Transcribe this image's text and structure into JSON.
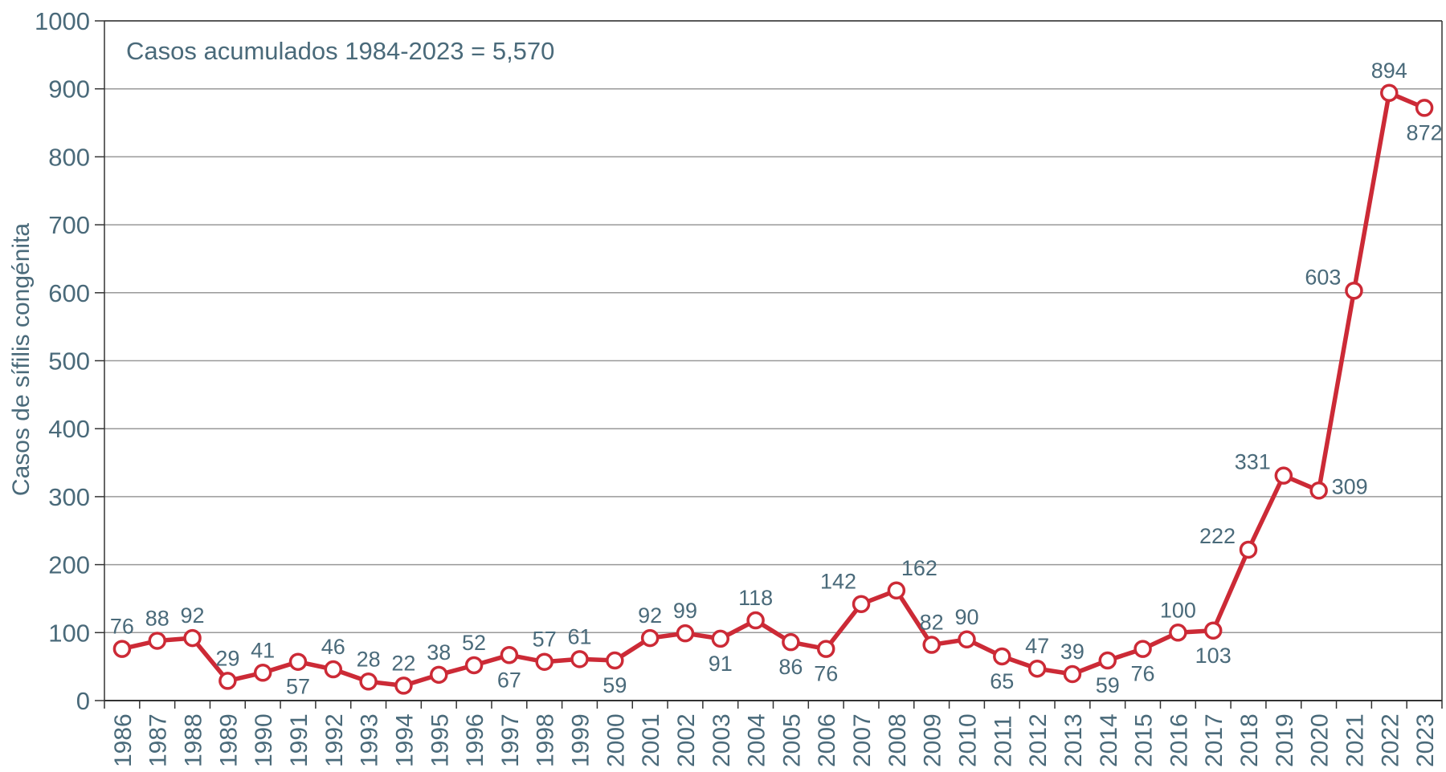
{
  "chart_data": {
    "type": "line",
    "title": "",
    "annotation": "Casos acumulados 1984-2023 = 5,570",
    "xlabel": "",
    "ylabel": "Casos de sífilis congénita",
    "ylim": [
      0,
      1000
    ],
    "yticks": [
      0,
      100,
      200,
      300,
      400,
      500,
      600,
      700,
      800,
      900,
      1000
    ],
    "grid": true,
    "categories": [
      "1986",
      "1987",
      "1988",
      "1989",
      "1990",
      "1991",
      "1992",
      "1993",
      "1994",
      "1995",
      "1996",
      "1997",
      "1998",
      "1999",
      "2000",
      "2001",
      "2002",
      "2003",
      "2004",
      "2005",
      "2006",
      "2007",
      "2008",
      "2009",
      "2010",
      "2011",
      "2012",
      "2013",
      "2014",
      "2015",
      "2016",
      "2017",
      "2018",
      "2019",
      "2020",
      "2021",
      "2022",
      "2023"
    ],
    "series": [
      {
        "name": "Casos de sífilis congénita",
        "values": [
          76,
          88,
          92,
          29,
          41,
          57,
          46,
          28,
          22,
          38,
          52,
          67,
          57,
          61,
          59,
          92,
          99,
          91,
          118,
          86,
          76,
          142,
          162,
          82,
          90,
          65,
          47,
          39,
          59,
          76,
          100,
          103,
          222,
          331,
          309,
          603,
          894,
          872
        ],
        "label_positions": [
          "above",
          "above",
          "above",
          "above",
          "above",
          "below",
          "above",
          "above",
          "above",
          "above",
          "above",
          "below",
          "above",
          "above",
          "below",
          "above",
          "above",
          "below",
          "above",
          "below",
          "below",
          "above-left",
          "above-right",
          "above",
          "above",
          "below",
          "above",
          "above",
          "below",
          "below",
          "above",
          "below",
          "left",
          "left",
          "right",
          "left",
          "above",
          "below"
        ]
      }
    ],
    "colors": {
      "line": "#cc2a36",
      "marker_fill": "#ffffff",
      "text": "#4a6a7a",
      "grid": "#999999",
      "axis": "#333333"
    }
  }
}
